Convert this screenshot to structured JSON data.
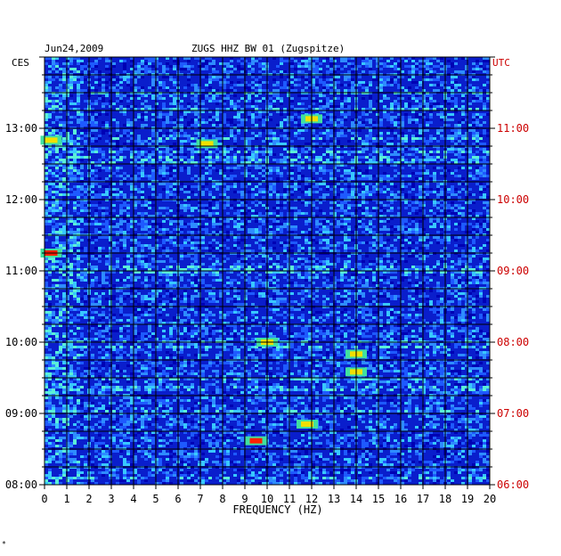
{
  "header": {
    "date": "Jun24,2009",
    "station": "ZUGS HHZ BW 01 (Zugspitze)",
    "left_tz": "CES",
    "right_tz": "UTC"
  },
  "footer_mark": "*",
  "colors": {
    "background": "#0a1ecc",
    "grid": "#000000",
    "left_axis_text": "#000000",
    "right_axis_text": "#cc0000"
  },
  "chart_data": {
    "type": "heatmap",
    "title": "ZUGS HHZ BW 01 (Zugspitze)",
    "subtitle": "Jun24,2009",
    "xlabel": "FREQUENCY (HZ)",
    "x_ticks": [
      0,
      1,
      2,
      3,
      4,
      5,
      6,
      7,
      8,
      9,
      10,
      11,
      12,
      13,
      14,
      15,
      16,
      17,
      18,
      19,
      20
    ],
    "xlim": [
      0,
      20
    ],
    "left_y_ticks": [
      "08:00",
      "09:00",
      "10:00",
      "11:00",
      "12:00",
      "13:00"
    ],
    "right_y_ticks": [
      "06:00",
      "07:00",
      "08:00",
      "09:00",
      "10:00",
      "11:00"
    ],
    "ylim_left": [
      "08:00",
      "14:00"
    ],
    "grid": true,
    "hot_spots": [
      {
        "freq": 9.5,
        "time": "08:37",
        "level": "red"
      },
      {
        "freq": 14.0,
        "time": "09:35",
        "level": "yellow"
      },
      {
        "freq": 14.0,
        "time": "09:50",
        "level": "yellow"
      },
      {
        "freq": 10.0,
        "time": "10:00",
        "level": "yellow"
      },
      {
        "freq": 12.0,
        "time": "13:08",
        "level": "yellow"
      },
      {
        "freq": 0.3,
        "time": "12:50",
        "level": "yellow"
      },
      {
        "freq": 7.3,
        "time": "12:47",
        "level": "yellow"
      },
      {
        "freq": 0.3,
        "time": "11:15",
        "level": "red"
      },
      {
        "freq": 11.8,
        "time": "08:51",
        "level": "yellow"
      }
    ]
  }
}
